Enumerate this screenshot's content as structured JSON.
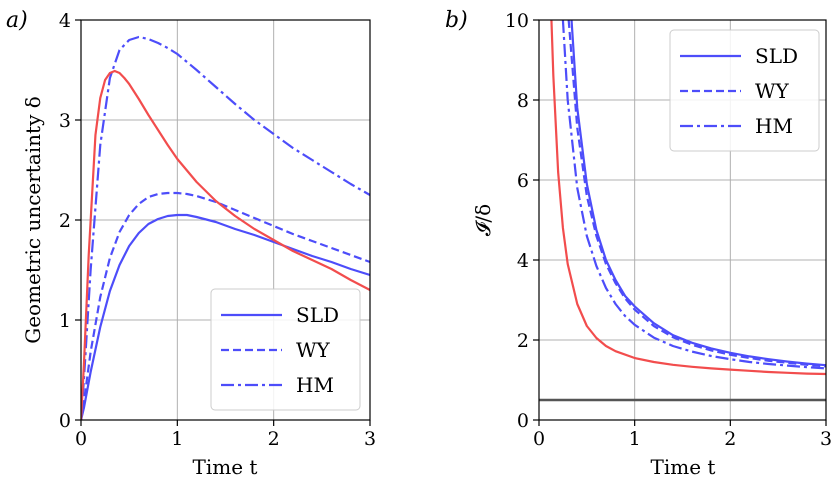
{
  "colors": {
    "blue": "#4d4dfa",
    "red": "#f24d4d",
    "grid": "#b0b0b0",
    "hline": "#555555"
  },
  "chart_data": [
    {
      "type": "line",
      "panel_label": "a)",
      "xlabel": "Time t",
      "ylabel": "Geometric uncertainty δ",
      "xlim": [
        0,
        3
      ],
      "ylim": [
        0,
        4
      ],
      "xticks": [
        "0",
        "1",
        "2",
        "3"
      ],
      "yticks": [
        "0",
        "1",
        "2",
        "3",
        "4"
      ],
      "grid": true,
      "legend": {
        "placement": "lower-right",
        "entries": [
          "SLD",
          "WY",
          "HM"
        ]
      },
      "series": [
        {
          "name": "SLD",
          "color": "blue",
          "style": "solid",
          "x": [
            0,
            0.03,
            0.1,
            0.2,
            0.3,
            0.4,
            0.5,
            0.6,
            0.7,
            0.8,
            0.9,
            1.0,
            1.1,
            1.2,
            1.4,
            1.6,
            1.8,
            2.0,
            2.2,
            2.4,
            2.6,
            2.8,
            3.0
          ],
          "y": [
            0.0,
            0.12,
            0.48,
            0.93,
            1.29,
            1.55,
            1.74,
            1.87,
            1.96,
            2.01,
            2.04,
            2.05,
            2.05,
            2.03,
            1.98,
            1.91,
            1.85,
            1.78,
            1.71,
            1.64,
            1.58,
            1.51,
            1.45
          ]
        },
        {
          "name": "WY",
          "color": "blue",
          "style": "dashed",
          "x": [
            0,
            0.03,
            0.1,
            0.2,
            0.3,
            0.4,
            0.5,
            0.6,
            0.7,
            0.8,
            0.9,
            1.0,
            1.1,
            1.2,
            1.4,
            1.6,
            1.8,
            2.0,
            2.2,
            2.4,
            2.6,
            2.8,
            3.0
          ],
          "y": [
            0.0,
            0.18,
            0.68,
            1.23,
            1.62,
            1.88,
            2.05,
            2.16,
            2.23,
            2.26,
            2.27,
            2.27,
            2.26,
            2.24,
            2.18,
            2.1,
            2.02,
            1.94,
            1.86,
            1.79,
            1.72,
            1.65,
            1.58
          ]
        },
        {
          "name": "HM",
          "color": "blue",
          "style": "dashdot",
          "x": [
            0,
            0.03,
            0.1,
            0.2,
            0.3,
            0.4,
            0.5,
            0.6,
            0.7,
            0.8,
            0.9,
            1.0,
            1.2,
            1.4,
            1.6,
            1.8,
            2.0,
            2.2,
            2.4,
            2.6,
            2.8,
            3.0
          ],
          "y": [
            0.0,
            0.4,
            1.5,
            2.75,
            3.42,
            3.7,
            3.8,
            3.83,
            3.81,
            3.77,
            3.72,
            3.66,
            3.5,
            3.33,
            3.16,
            3.0,
            2.86,
            2.72,
            2.6,
            2.48,
            2.36,
            2.25
          ]
        },
        {
          "color": "red",
          "style": "solid",
          "x": [
            0,
            0.03,
            0.08,
            0.15,
            0.2,
            0.25,
            0.3,
            0.35,
            0.4,
            0.45,
            0.5,
            0.6,
            0.7,
            0.8,
            0.9,
            1.0,
            1.2,
            1.4,
            1.6,
            1.8,
            2.0,
            2.2,
            2.4,
            2.6,
            2.8,
            3.0
          ],
          "y": [
            0.0,
            0.55,
            1.65,
            2.85,
            3.22,
            3.4,
            3.47,
            3.49,
            3.47,
            3.42,
            3.36,
            3.21,
            3.05,
            2.9,
            2.75,
            2.61,
            2.38,
            2.19,
            2.04,
            1.91,
            1.8,
            1.69,
            1.6,
            1.51,
            1.4,
            1.3
          ]
        }
      ]
    },
    {
      "type": "line",
      "panel_label": "b)",
      "xlabel": "Time t",
      "ylabel": "𝓘/δ",
      "xlim": [
        0,
        3
      ],
      "ylim": [
        0,
        10
      ],
      "xticks": [
        "0",
        "1",
        "2",
        "3"
      ],
      "yticks": [
        "0",
        "2",
        "4",
        "6",
        "8",
        "10"
      ],
      "grid": true,
      "legend": {
        "placement": "top-right",
        "entries": [
          "SLD",
          "WY",
          "HM"
        ]
      },
      "series": [
        {
          "name": "SLD",
          "color": "blue",
          "style": "solid",
          "x": [
            0.34,
            0.4,
            0.5,
            0.6,
            0.7,
            0.8,
            0.9,
            1.0,
            1.2,
            1.4,
            1.6,
            1.8,
            2.0,
            2.2,
            2.4,
            2.6,
            2.8,
            3.0
          ],
          "y": [
            10.0,
            7.8,
            5.9,
            4.75,
            4.0,
            3.5,
            3.1,
            2.84,
            2.42,
            2.12,
            1.93,
            1.79,
            1.68,
            1.59,
            1.52,
            1.46,
            1.41,
            1.37
          ]
        },
        {
          "name": "WY",
          "color": "blue",
          "style": "dashed",
          "x": [
            0.31,
            0.4,
            0.5,
            0.6,
            0.7,
            0.8,
            0.9,
            1.0,
            1.2,
            1.4,
            1.6,
            1.8,
            2.0,
            2.2,
            2.4,
            2.6,
            2.8,
            3.0
          ],
          "y": [
            10.0,
            7.3,
            5.6,
            4.6,
            3.9,
            3.42,
            3.04,
            2.76,
            2.35,
            2.07,
            1.88,
            1.74,
            1.63,
            1.55,
            1.48,
            1.43,
            1.38,
            1.34
          ]
        },
        {
          "name": "HM",
          "color": "blue",
          "style": "dashdot",
          "x": [
            0.25,
            0.3,
            0.4,
            0.5,
            0.6,
            0.7,
            0.8,
            0.9,
            1.0,
            1.2,
            1.4,
            1.6,
            1.8,
            2.0,
            2.2,
            2.4,
            2.6,
            2.8,
            3.0
          ],
          "y": [
            10.0,
            8.0,
            5.8,
            4.6,
            3.85,
            3.3,
            2.9,
            2.6,
            2.38,
            2.06,
            1.85,
            1.71,
            1.6,
            1.52,
            1.45,
            1.4,
            1.36,
            1.32,
            1.29
          ]
        },
        {
          "color": "red",
          "style": "solid",
          "x": [
            0.13,
            0.15,
            0.2,
            0.25,
            0.3,
            0.4,
            0.5,
            0.6,
            0.7,
            0.8,
            1.0,
            1.2,
            1.4,
            1.6,
            1.8,
            2.0,
            2.2,
            2.4,
            2.6,
            2.8,
            3.0
          ],
          "y": [
            10.0,
            8.6,
            6.2,
            4.8,
            3.9,
            2.9,
            2.35,
            2.05,
            1.85,
            1.72,
            1.55,
            1.45,
            1.38,
            1.33,
            1.29,
            1.26,
            1.23,
            1.2,
            1.18,
            1.16,
            1.15
          ]
        },
        {
          "color": "hline",
          "style": "solid",
          "x": [
            0,
            3
          ],
          "y": [
            0.5,
            0.5
          ]
        }
      ]
    }
  ]
}
